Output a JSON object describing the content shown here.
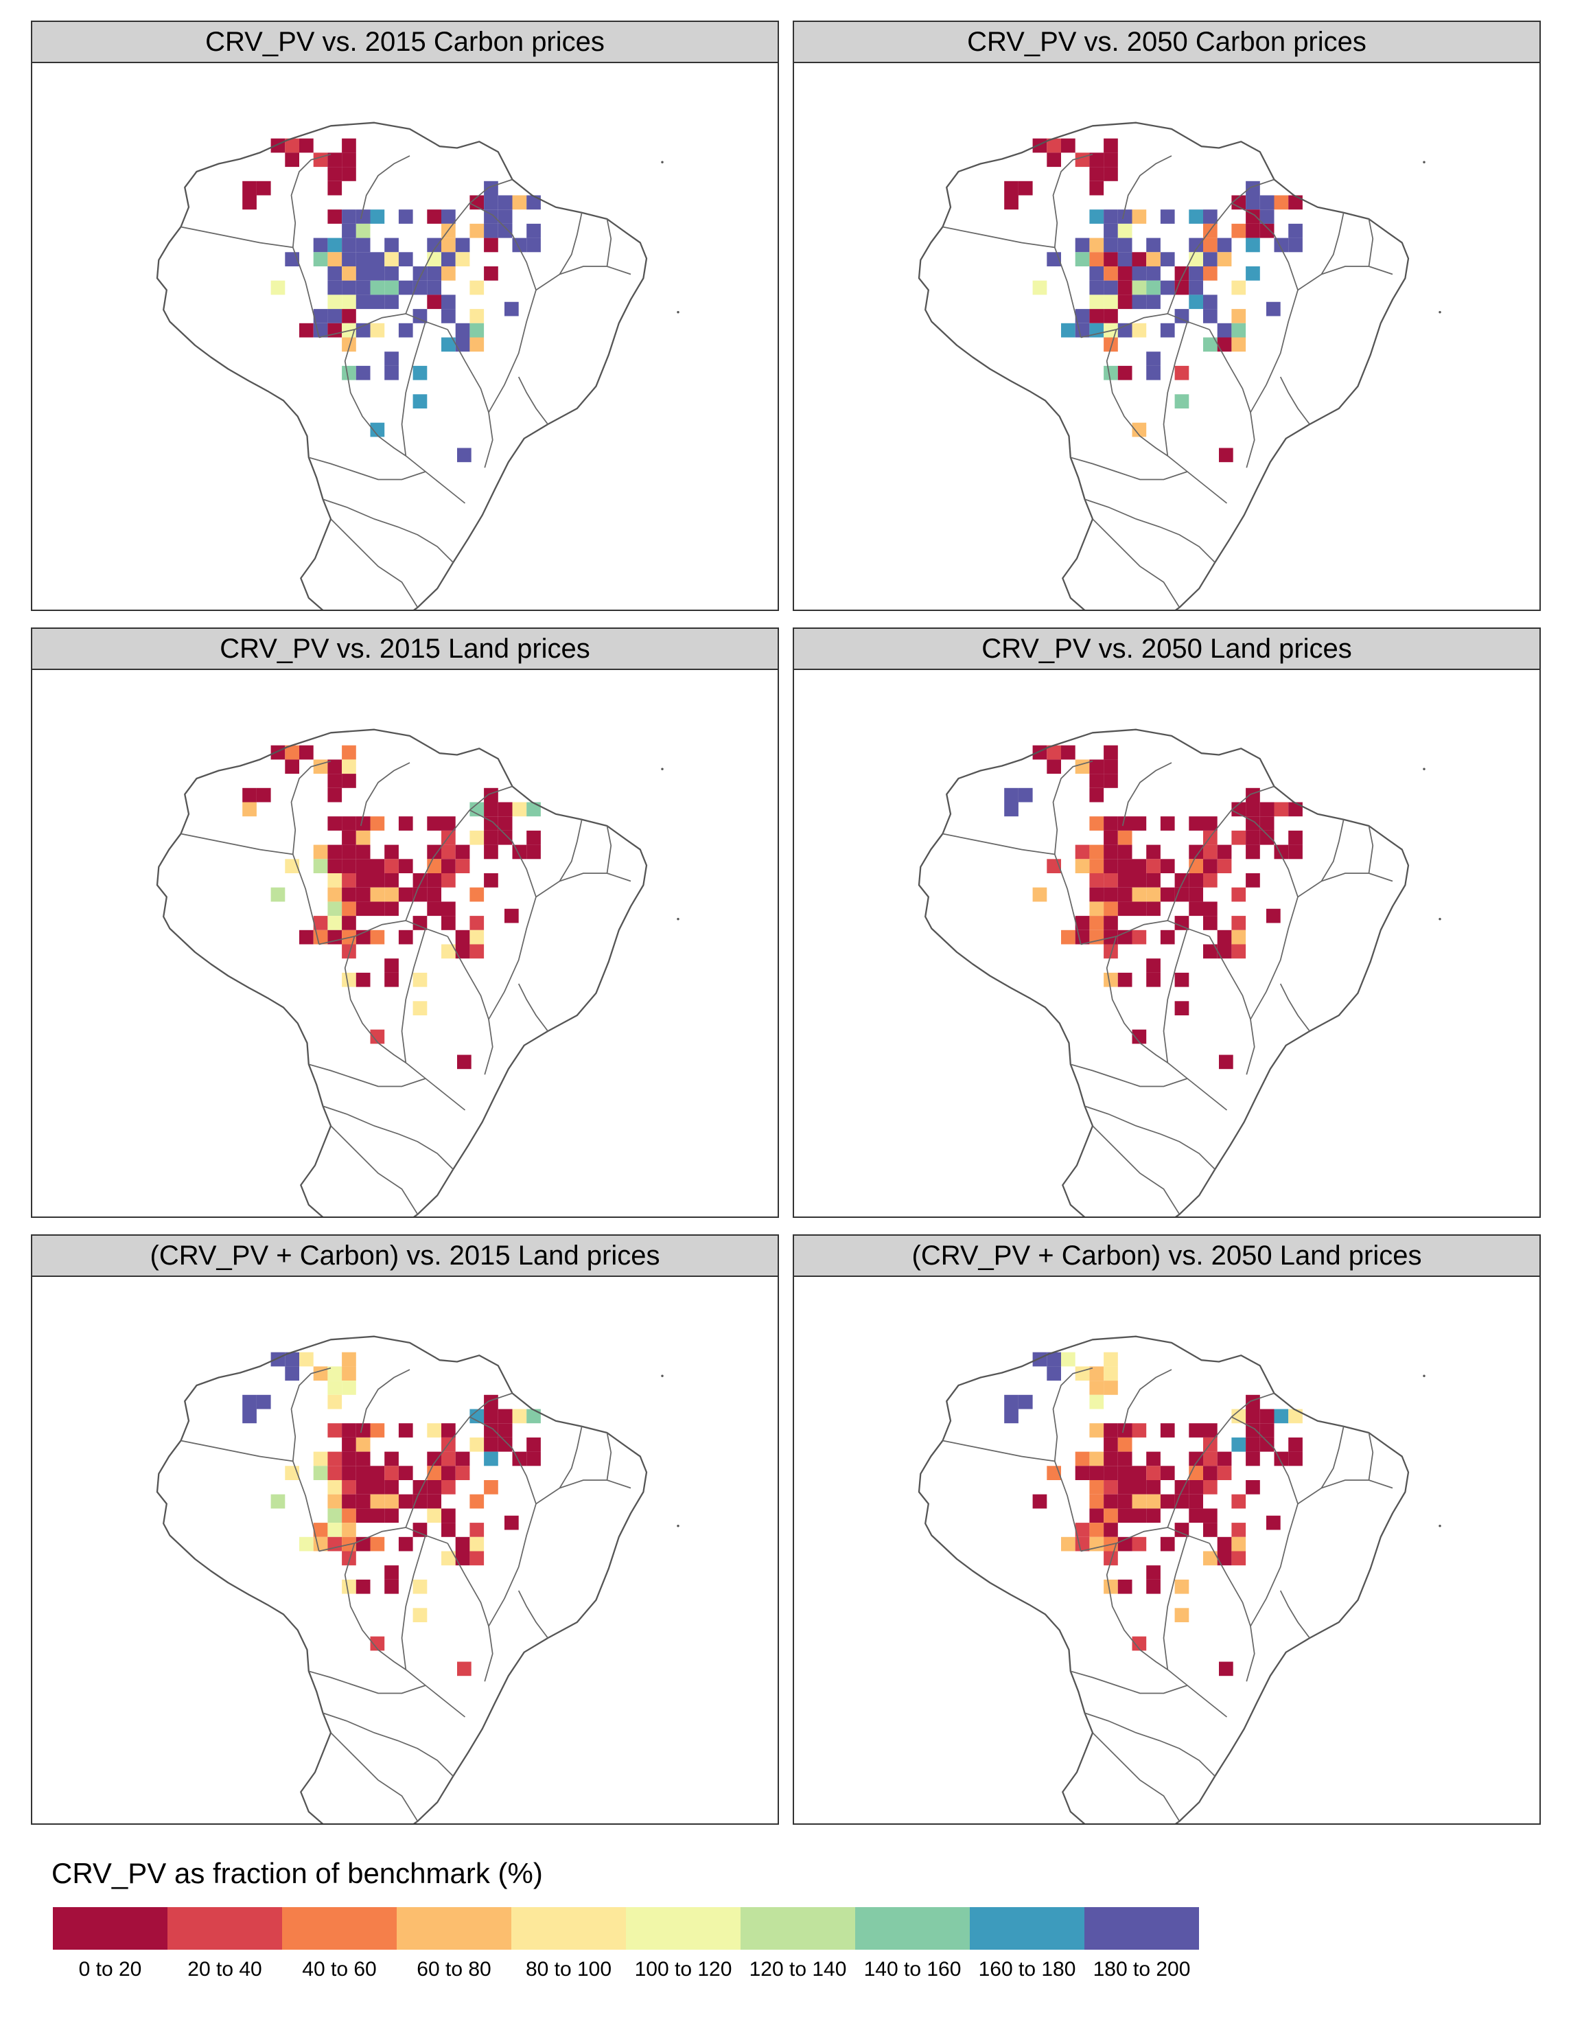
{
  "panels": [
    {
      "title": "CRV_PV vs. 2015 Carbon prices",
      "scheme": "carbon2015"
    },
    {
      "title": "CRV_PV vs. 2050 Carbon prices",
      "scheme": "carbon2050"
    },
    {
      "title": "CRV_PV vs. 2015 Land prices",
      "scheme": "land2015"
    },
    {
      "title": "CRV_PV vs. 2050 Land prices",
      "scheme": "land2050"
    },
    {
      "title": "(CRV_PV + Carbon) vs. 2015 Land prices",
      "scheme": "combo2015"
    },
    {
      "title": "(CRV_PV + Carbon) vs. 2050 Land prices",
      "scheme": "combo2050"
    }
  ],
  "legend": {
    "title": "CRV_PV as fraction of benchmark (%)",
    "classes": [
      {
        "label": "0 to 20",
        "color": "#a50f3c"
      },
      {
        "label": "20 to 40",
        "color": "#d9434d"
      },
      {
        "label": "40 to 60",
        "color": "#f57f4a"
      },
      {
        "label": "60 to 80",
        "color": "#fcbe6e"
      },
      {
        "label": "80 to 100",
        "color": "#fde89a"
      },
      {
        "label": "100 to 120",
        "color": "#f1f7a8"
      },
      {
        "label": "120 to 140",
        "color": "#c0e39d"
      },
      {
        "label": "140 to 160",
        "color": "#84cba6"
      },
      {
        "label": "160 to 180",
        "color": "#3d9bbd"
      },
      {
        "label": "180 to 200",
        "color": "#5b57a6"
      }
    ]
  }
}
